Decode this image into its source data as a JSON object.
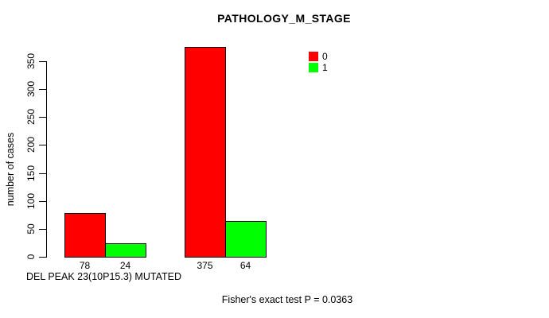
{
  "colors": {
    "background": "#FFFFFF",
    "text": "#000000",
    "bar_border": "#000000"
  },
  "chart_data": {
    "type": "bar",
    "title": "PATHOLOGY_M_STAGE",
    "ylabel": "number of cases",
    "xlabel": "DEL PEAK 23(10P15.3) MUTATED",
    "annotation": "Fisher's exact test P = 0.0363",
    "ylim": [
      0,
      375
    ],
    "yticks": [
      0,
      50,
      100,
      150,
      200,
      250,
      300,
      350
    ],
    "grid": false,
    "legend_position": "top-right",
    "series": [
      {
        "name": "0",
        "color": "#FF0000",
        "values": [
          78,
          375
        ]
      },
      {
        "name": "1",
        "color": "#00FF00",
        "values": [
          24,
          64
        ]
      }
    ]
  }
}
